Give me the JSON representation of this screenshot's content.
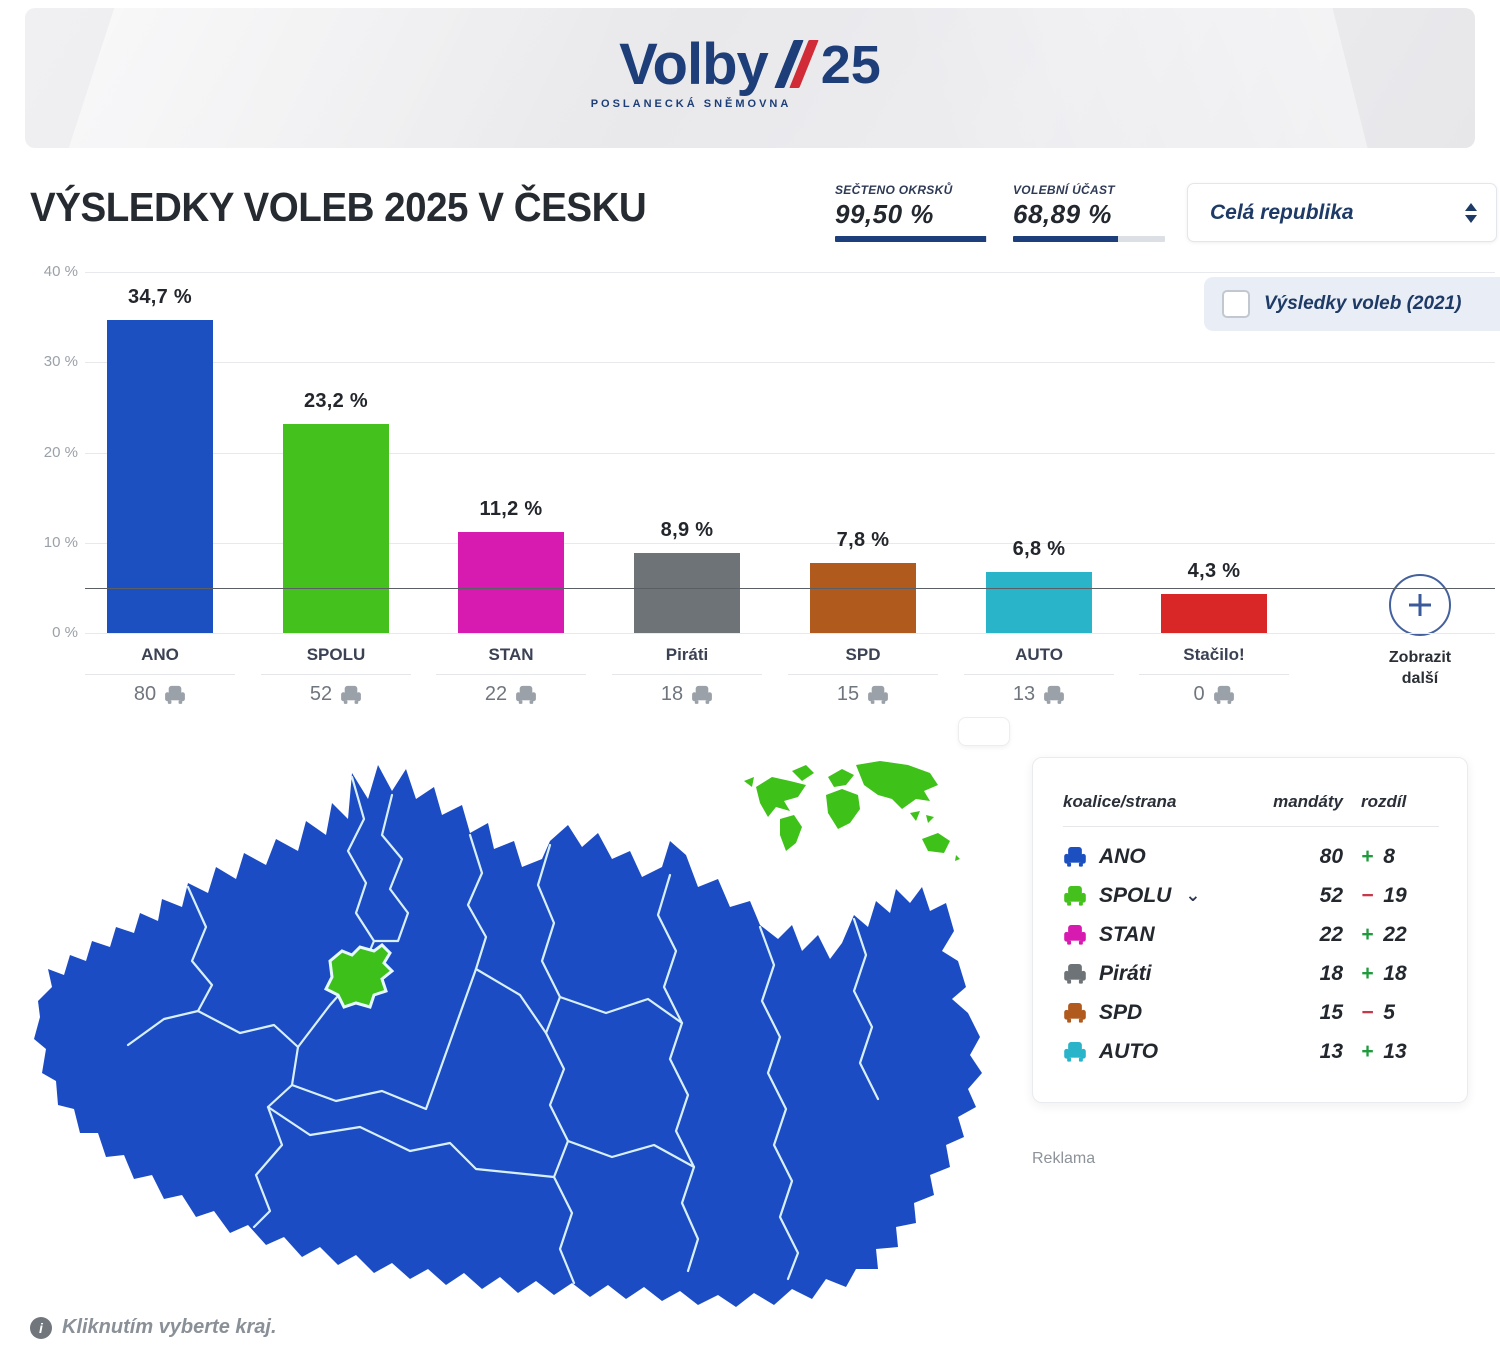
{
  "logo": {
    "word": "Volby",
    "year": "25",
    "subtitle": "POSLANECKÁ SNĚMOVNA"
  },
  "header": {
    "title": "VÝSLEDKY VOLEB 2025 V ČESKU",
    "stats": [
      {
        "label": "SEČTENO OKRSKŮ",
        "value": "99,50 %",
        "pct": 99.5
      },
      {
        "label": "VOLEBNÍ ÚČAST",
        "value": "68,89 %",
        "pct": 68.89
      }
    ],
    "region_select": {
      "value": "Celá republika"
    }
  },
  "legend": {
    "label": "Výsledky voleb (2021)",
    "checked": false
  },
  "chart_data": {
    "type": "bar",
    "title": "VÝSLEDKY VOLEB 2025 V ČESKU",
    "categories": [
      "ANO",
      "SPOLU",
      "STAN",
      "Piráti",
      "SPD",
      "AUTO",
      "Stačilo!"
    ],
    "values": [
      34.7,
      23.2,
      11.2,
      8.9,
      7.8,
      6.8,
      4.3
    ],
    "value_labels": [
      "34,7 %",
      "23,2 %",
      "11,2 %",
      "8,9 %",
      "7,8 %",
      "6,8 %",
      "4,3 %"
    ],
    "seats": [
      80,
      52,
      22,
      18,
      15,
      13,
      0
    ],
    "bar_colors": [
      "#1c50c0",
      "#45c11e",
      "#d81bb0",
      "#6e7377",
      "#b05a1e",
      "#2ab4c9",
      "#d92626"
    ],
    "ticks": [
      {
        "v": 0,
        "label": "0 %"
      },
      {
        "v": 10,
        "label": "10 %"
      },
      {
        "v": 20,
        "label": "20 %"
      },
      {
        "v": 30,
        "label": "30 %"
      },
      {
        "v": 40,
        "label": "40 %"
      }
    ],
    "ylim": [
      0,
      40
    ],
    "threshold_pct": 5,
    "grid": true,
    "legend": [
      "Výsledky voleb (2021)"
    ],
    "legend_position": "top-right"
  },
  "show_more": {
    "label": "Zobrazit další"
  },
  "table": {
    "headers": [
      "koalice/strana",
      "mandáty",
      "rozdíl"
    ],
    "rows": [
      {
        "party": "ANO",
        "color": "#1c50c0",
        "mandates": "80",
        "sign": "+",
        "diff": "8",
        "expandable": false
      },
      {
        "party": "SPOLU",
        "color": "#45c11e",
        "mandates": "52",
        "sign": "-",
        "diff": "19",
        "expandable": true
      },
      {
        "party": "STAN",
        "color": "#d81bb0",
        "mandates": "22",
        "sign": "+",
        "diff": "22",
        "expandable": false
      },
      {
        "party": "Piráti",
        "color": "#6e7377",
        "mandates": "18",
        "sign": "+",
        "diff": "18",
        "expandable": false
      },
      {
        "party": "SPD",
        "color": "#b05a1e",
        "mandates": "15",
        "sign": "-",
        "diff": "5",
        "expandable": false
      },
      {
        "party": "AUTO",
        "color": "#2ab4c9",
        "mandates": "13",
        "sign": "+",
        "diff": "13",
        "expandable": false
      }
    ]
  },
  "map": {
    "winner_color": "#1c4cc3",
    "prague_color": "#3dc019",
    "abroad_color": "#3ec119"
  },
  "ad_label": "Reklama",
  "map_hint": "Kliknutím vyberte kraj."
}
